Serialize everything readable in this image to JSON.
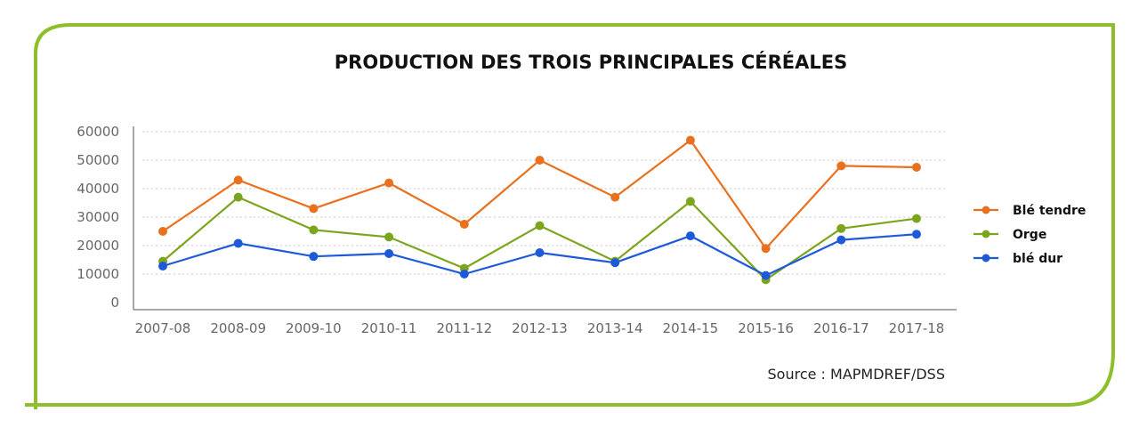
{
  "chart_data": {
    "type": "line",
    "title": "PRODUCTION DES TROIS PRINCIPALES CÉRÉALES",
    "xlabel": "",
    "ylabel": "",
    "categories": [
      "2007-08",
      "2008-09",
      "2009-10",
      "2010-11",
      "2011-12",
      "2012-13",
      "2013-14",
      "2014-15",
      "2015-16",
      "2016-17",
      "2017-18"
    ],
    "ylim": [
      0,
      60000
    ],
    "yticks": [
      "0",
      "10000",
      "20000",
      "30000",
      "40000",
      "50000",
      "60000"
    ],
    "grid": true,
    "legend": "right",
    "series": [
      {
        "name": "Blé tendre",
        "color": "#E8701E",
        "values": [
          25000,
          43000,
          33000,
          42000,
          27500,
          50000,
          37000,
          57000,
          19000,
          48000,
          47500
        ]
      },
      {
        "name": "Orge",
        "color": "#7CA51E",
        "values": [
          14500,
          37000,
          25500,
          23000,
          12000,
          27000,
          14500,
          35500,
          8000,
          26000,
          29500
        ]
      },
      {
        "name": "blé dur",
        "color": "#1E5AD8",
        "values": [
          12800,
          20800,
          16200,
          17200,
          10000,
          17500,
          14000,
          23400,
          9500,
          22000,
          24000
        ]
      }
    ],
    "source": "Source : MAPMDREF/DSS"
  },
  "colors": {
    "frame": "#8DBE2B",
    "grid": "#C8C8C8",
    "axis_text": "#666666"
  }
}
